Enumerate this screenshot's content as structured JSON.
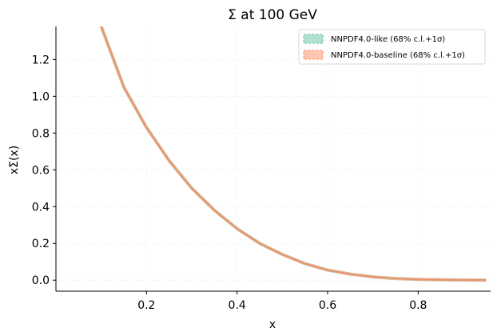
{
  "chart_data": {
    "type": "line",
    "title": "Σ at 100 GeV",
    "xlabel": "x",
    "ylabel": "xΣ(x)",
    "xlim": [
      0.0,
      0.96
    ],
    "ylim": [
      -0.06,
      1.38
    ],
    "xticks": [
      0.2,
      0.4,
      0.6,
      0.8
    ],
    "yticks": [
      0.0,
      0.2,
      0.4,
      0.6,
      0.8,
      1.0,
      1.2
    ],
    "grid": true,
    "legend_position": "top-right",
    "series": [
      {
        "name": "NNPDF4.0-like (68% c.l.+1σ)",
        "color": "#66c2a5",
        "x": [
          0.1,
          0.15,
          0.2,
          0.25,
          0.3,
          0.35,
          0.4,
          0.45,
          0.5,
          0.55,
          0.6,
          0.65,
          0.7,
          0.75,
          0.8,
          0.85,
          0.9,
          0.95
        ],
        "y": [
          1.38,
          1.05,
          0.83,
          0.65,
          0.5,
          0.38,
          0.28,
          0.2,
          0.14,
          0.09,
          0.055,
          0.033,
          0.018,
          0.009,
          0.004,
          0.002,
          0.001,
          0.0
        ]
      },
      {
        "name": "NNPDF4.0-baseline (68% c.l.+1σ)",
        "color": "#fc8d62",
        "x": [
          0.1,
          0.15,
          0.2,
          0.25,
          0.3,
          0.35,
          0.4,
          0.45,
          0.5,
          0.55,
          0.6,
          0.65,
          0.7,
          0.75,
          0.8,
          0.85,
          0.9,
          0.95
        ],
        "y": [
          1.38,
          1.05,
          0.83,
          0.65,
          0.5,
          0.38,
          0.28,
          0.2,
          0.14,
          0.09,
          0.055,
          0.033,
          0.018,
          0.009,
          0.004,
          0.002,
          0.001,
          0.0
        ]
      }
    ]
  }
}
